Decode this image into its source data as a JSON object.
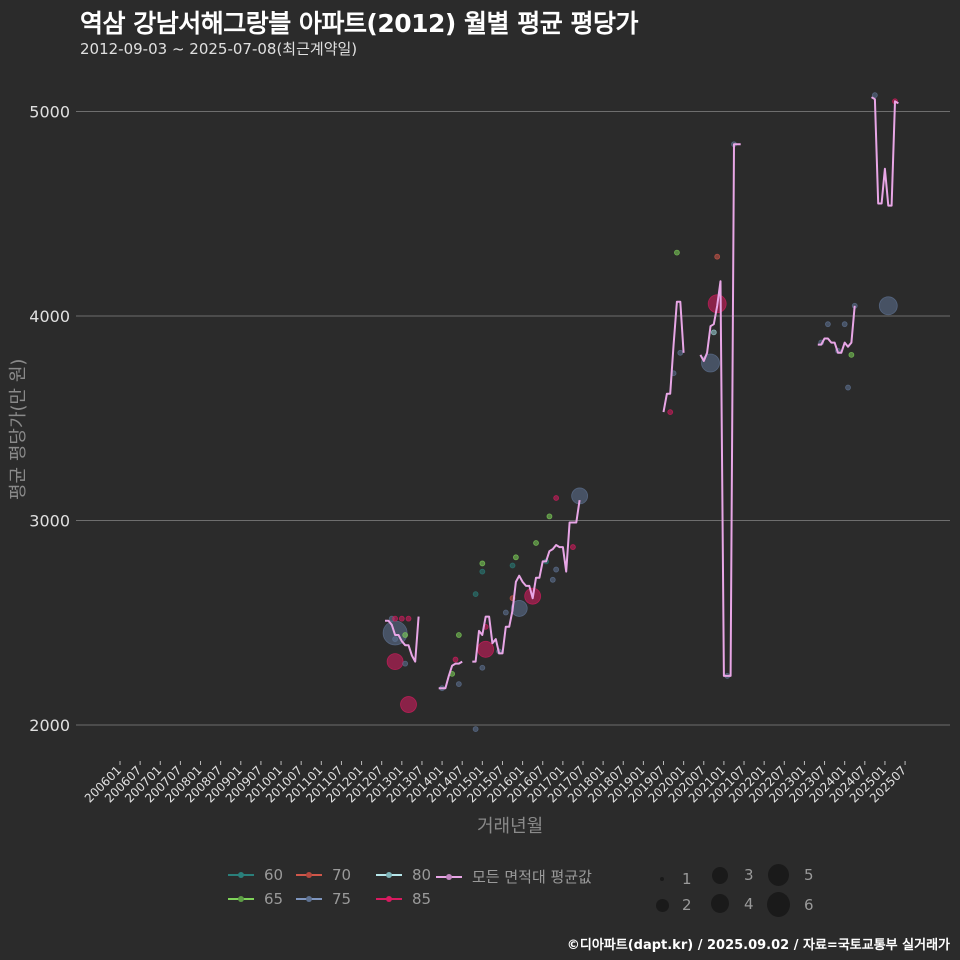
{
  "header": {
    "title": "역삼 강남서해그랑블 아파트(2012) 월별 평균 평당가",
    "subtitle": "2012-09-03 ~ 2025-07-08(최근계약일)"
  },
  "axes": {
    "ylabel": "평균 평당가(만 원)",
    "xlabel": "거래년월"
  },
  "caption": "©디아파트(dapt.kr) / 2025.09.02 / 자료=국토교통부 실거래가",
  "legend": {
    "areas": [
      {
        "label": "60",
        "color": "#2a7f7a"
      },
      {
        "label": "65",
        "color": "#7fd35a"
      },
      {
        "label": "70",
        "color": "#d0574a"
      },
      {
        "label": "75",
        "color": "#5f7394"
      },
      {
        "label": "80",
        "color": "#9fd4d8"
      },
      {
        "label": "85",
        "color": "#d81b60"
      },
      {
        "label": "모든 면적대 평균값",
        "color": "#e8a6e6"
      }
    ],
    "sizes": [
      {
        "label": "1",
        "r": 2
      },
      {
        "label": "2",
        "r": 6
      },
      {
        "label": "3",
        "r": 8
      },
      {
        "label": "4",
        "r": 9
      },
      {
        "label": "5",
        "r": 11
      },
      {
        "label": "6",
        "r": 12
      }
    ]
  },
  "chart_data": {
    "type": "line",
    "title": "역삼 강남서해그랑블 아파트(2012) 월별 평균 평당가",
    "subtitle": "2012-09-03 ~ 2025-07-08(최근계약일)",
    "xlabel": "거래년월",
    "ylabel": "평균 평당가(만 원)",
    "ylim": [
      1850,
      5200
    ],
    "yticks": [
      2000,
      3000,
      4000,
      5000
    ],
    "xticks": [
      "200601",
      "200607",
      "200701",
      "200707",
      "200801",
      "200807",
      "200901",
      "200907",
      "201001",
      "201007",
      "201101",
      "201107",
      "201201",
      "201207",
      "201301",
      "201307",
      "201401",
      "201407",
      "201501",
      "201507",
      "201601",
      "201607",
      "201701",
      "201707",
      "201801",
      "201807",
      "201901",
      "201907",
      "202001",
      "202007",
      "202101",
      "202107",
      "202201",
      "202207",
      "202301",
      "202307",
      "202401",
      "202407",
      "202501",
      "202507"
    ],
    "grid": true,
    "legend_position": "bottom",
    "series": [
      {
        "name": "모든 면적대 평균값",
        "color": "#e8a6e6",
        "segments": [
          [
            [
              "201208",
              2510
            ],
            [
              "201209",
              2510
            ],
            [
              "201210",
              2490
            ],
            [
              "201211",
              2440
            ],
            [
              "201212",
              2440
            ],
            [
              "201301",
              2410
            ],
            [
              "201302",
              2390
            ],
            [
              "201303",
              2390
            ],
            [
              "201304",
              2340
            ],
            [
              "201305",
              2310
            ],
            [
              "201306",
              2530
            ]
          ],
          [
            [
              "201312",
              2180
            ],
            [
              "201401",
              2180
            ],
            [
              "201402",
              2180
            ],
            [
              "201403",
              2240
            ],
            [
              "201404",
              2290
            ],
            [
              "201405",
              2300
            ],
            [
              "201406",
              2300
            ],
            [
              "201407",
              2310
            ]
          ],
          [
            [
              "201410",
              2310
            ],
            [
              "201411",
              2310
            ],
            [
              "201412",
              2460
            ],
            [
              "201501",
              2440
            ],
            [
              "201502",
              2530
            ],
            [
              "201503",
              2530
            ],
            [
              "201504",
              2400
            ],
            [
              "201505",
              2420
            ],
            [
              "201506",
              2350
            ],
            [
              "201507",
              2350
            ],
            [
              "201508",
              2480
            ],
            [
              "201509",
              2480
            ],
            [
              "201510",
              2560
            ],
            [
              "201511",
              2700
            ],
            [
              "201512",
              2730
            ],
            [
              "201601",
              2700
            ],
            [
              "201602",
              2680
            ],
            [
              "201603",
              2680
            ],
            [
              "201604",
              2620
            ],
            [
              "201605",
              2720
            ],
            [
              "201606",
              2720
            ],
            [
              "201607",
              2800
            ],
            [
              "201608",
              2800
            ],
            [
              "201609",
              2850
            ],
            [
              "201610",
              2860
            ],
            [
              "201611",
              2880
            ],
            [
              "201612",
              2870
            ],
            [
              "201701",
              2870
            ],
            [
              "201702",
              2750
            ],
            [
              "201703",
              2990
            ],
            [
              "201704",
              2990
            ],
            [
              "201705",
              2990
            ],
            [
              "201706",
              3100
            ]
          ],
          [
            [
              "201907",
              3530
            ],
            [
              "201908",
              3620
            ],
            [
              "201909",
              3620
            ],
            [
              "201910",
              3860
            ],
            [
              "201911",
              4070
            ],
            [
              "201912",
              4070
            ],
            [
              "202001",
              3820
            ]
          ],
          [
            [
              "202006",
              3810
            ],
            [
              "202007",
              3780
            ],
            [
              "202008",
              3820
            ],
            [
              "202009",
              3950
            ],
            [
              "202010",
              3960
            ],
            [
              "202011",
              4050
            ],
            [
              "202012",
              4170
            ],
            [
              "202101",
              2240
            ],
            [
              "202102",
              2240
            ],
            [
              "202103",
              2240
            ],
            [
              "202104",
              4840
            ],
            [
              "202105",
              4840
            ],
            [
              "202106",
              4840
            ]
          ],
          [
            [
              "202305",
              3860
            ],
            [
              "202306",
              3860
            ],
            [
              "202307",
              3890
            ],
            [
              "202308",
              3890
            ],
            [
              "202309",
              3870
            ],
            [
              "202310",
              3870
            ],
            [
              "202311",
              3820
            ],
            [
              "202312",
              3820
            ],
            [
              "202401",
              3870
            ],
            [
              "202402",
              3850
            ],
            [
              "202403",
              3870
            ],
            [
              "202404",
              4050
            ]
          ],
          [
            [
              "202409",
              5070
            ],
            [
              "202410",
              5060
            ],
            [
              "202411",
              4550
            ],
            [
              "202412",
              4550
            ],
            [
              "202501",
              4720
            ],
            [
              "202502",
              4540
            ],
            [
              "202503",
              4540
            ],
            [
              "202504",
              5050
            ],
            [
              "202505",
              5040
            ]
          ]
        ]
      }
    ],
    "points": [
      {
        "x": "201210",
        "y": 2520,
        "area": "75",
        "n": 1
      },
      {
        "x": "201211",
        "y": 2450,
        "area": "75",
        "n": 6
      },
      {
        "x": "201211",
        "y": 2420,
        "area": "75",
        "n": 1
      },
      {
        "x": "201211",
        "y": 2310,
        "area": "85",
        "n": 3
      },
      {
        "x": "201211",
        "y": 2520,
        "area": "85",
        "n": 1
      },
      {
        "x": "201301",
        "y": 2520,
        "area": "85",
        "n": 1
      },
      {
        "x": "201303",
        "y": 2520,
        "area": "85",
        "n": 1
      },
      {
        "x": "201302",
        "y": 2440,
        "area": "65",
        "n": 1
      },
      {
        "x": "201302",
        "y": 2300,
        "area": "75",
        "n": 1
      },
      {
        "x": "201303",
        "y": 2100,
        "area": "85",
        "n": 3
      },
      {
        "x": "201401",
        "y": 2180,
        "area": "75",
        "n": 1
      },
      {
        "x": "201404",
        "y": 2250,
        "area": "65",
        "n": 1
      },
      {
        "x": "201405",
        "y": 2320,
        "area": "85",
        "n": 1
      },
      {
        "x": "201406",
        "y": 2440,
        "area": "65",
        "n": 1
      },
      {
        "x": "201406",
        "y": 2200,
        "area": "75",
        "n": 1
      },
      {
        "x": "201411",
        "y": 1980,
        "area": "75",
        "n": 1
      },
      {
        "x": "201411",
        "y": 2640,
        "area": "60",
        "n": 1
      },
      {
        "x": "201501",
        "y": 2790,
        "area": "65",
        "n": 1
      },
      {
        "x": "201501",
        "y": 2750,
        "area": "60",
        "n": 1
      },
      {
        "x": "201501",
        "y": 2280,
        "area": "75",
        "n": 1
      },
      {
        "x": "201502",
        "y": 2370,
        "area": "85",
        "n": 3
      },
      {
        "x": "201502",
        "y": 2480,
        "area": "85",
        "n": 1
      },
      {
        "x": "201506",
        "y": 2360,
        "area": "75",
        "n": 1
      },
      {
        "x": "201508",
        "y": 2550,
        "area": "75",
        "n": 1
      },
      {
        "x": "201510",
        "y": 2780,
        "area": "60",
        "n": 1
      },
      {
        "x": "201511",
        "y": 2820,
        "area": "65",
        "n": 1
      },
      {
        "x": "201510",
        "y": 2620,
        "area": "70",
        "n": 1
      },
      {
        "x": "201512",
        "y": 2570,
        "area": "75",
        "n": 3
      },
      {
        "x": "201604",
        "y": 2630,
        "area": "85",
        "n": 3
      },
      {
        "x": "201605",
        "y": 2890,
        "area": "65",
        "n": 1
      },
      {
        "x": "201608",
        "y": 2800,
        "area": "60",
        "n": 1
      },
      {
        "x": "201610",
        "y": 2710,
        "area": "75",
        "n": 1
      },
      {
        "x": "201611",
        "y": 2760,
        "area": "75",
        "n": 1
      },
      {
        "x": "201609",
        "y": 3020,
        "area": "65",
        "n": 1
      },
      {
        "x": "201611",
        "y": 3110,
        "area": "85",
        "n": 1
      },
      {
        "x": "201704",
        "y": 2870,
        "area": "85",
        "n": 1
      },
      {
        "x": "201706",
        "y": 3120,
        "area": "75",
        "n": 3
      },
      {
        "x": "201909",
        "y": 3530,
        "area": "85",
        "n": 1
      },
      {
        "x": "201910",
        "y": 3720,
        "area": "75",
        "n": 1
      },
      {
        "x": "201911",
        "y": 4310,
        "area": "65",
        "n": 1
      },
      {
        "x": "201912",
        "y": 3820,
        "area": "75",
        "n": 1
      },
      {
        "x": "202009",
        "y": 3770,
        "area": "75",
        "n": 4
      },
      {
        "x": "202010",
        "y": 3920,
        "area": "80",
        "n": 1
      },
      {
        "x": "202011",
        "y": 4060,
        "area": "85",
        "n": 4
      },
      {
        "x": "202011",
        "y": 4290,
        "area": "70",
        "n": 1
      },
      {
        "x": "202102",
        "y": 2240,
        "area": "75",
        "n": 1
      },
      {
        "x": "202104",
        "y": 4840,
        "area": "75",
        "n": 1
      },
      {
        "x": "202306",
        "y": 3870,
        "area": "75",
        "n": 1
      },
      {
        "x": "202308",
        "y": 3960,
        "area": "75",
        "n": 1
      },
      {
        "x": "202311",
        "y": 3830,
        "area": "75",
        "n": 1
      },
      {
        "x": "202401",
        "y": 3960,
        "area": "75",
        "n": 1
      },
      {
        "x": "202402",
        "y": 3650,
        "area": "75",
        "n": 1
      },
      {
        "x": "202403",
        "y": 3810,
        "area": "65",
        "n": 1
      },
      {
        "x": "202404",
        "y": 4050,
        "area": "75",
        "n": 1
      },
      {
        "x": "202410",
        "y": 5080,
        "area": "75",
        "n": 1
      },
      {
        "x": "202504",
        "y": 5050,
        "area": "85",
        "n": 1
      },
      {
        "x": "202502",
        "y": 4050,
        "area": "75",
        "n": 4
      }
    ]
  }
}
